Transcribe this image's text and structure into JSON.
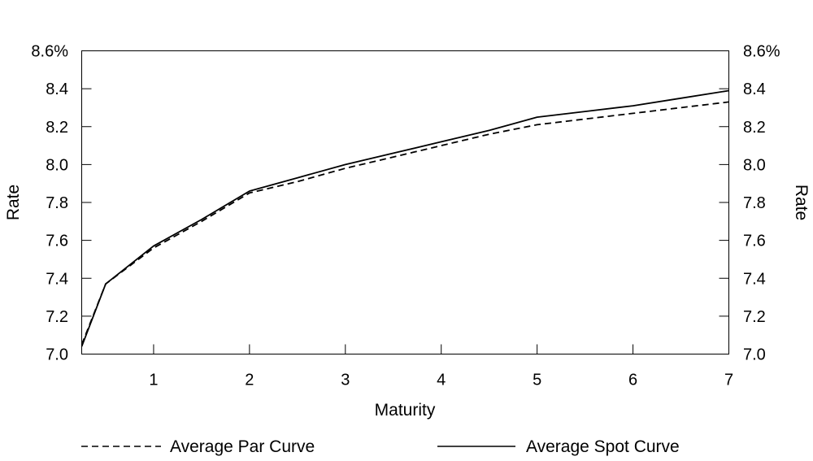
{
  "chart_data": {
    "type": "line",
    "xlabel": "Maturity",
    "ylabel_left": "Rate",
    "ylabel_right": "Rate",
    "xlim": [
      0.25,
      7
    ],
    "ylim": [
      7.0,
      8.6
    ],
    "x_ticks": [
      1,
      2,
      3,
      4,
      5,
      6,
      7
    ],
    "x_tick_labels": [
      "1",
      "2",
      "3",
      "4",
      "5",
      "6",
      "7"
    ],
    "y_ticks": [
      7.0,
      7.2,
      7.4,
      7.6,
      7.8,
      8.0,
      8.2,
      8.4,
      8.6
    ],
    "y_tick_labels": [
      "7.0",
      "7.2",
      "7.4",
      "7.6",
      "7.8",
      "8.0",
      "8.2",
      "8.4",
      "8.6%"
    ],
    "legend_position": "bottom",
    "series": [
      {
        "name": "Average Par Curve",
        "style": "dashed",
        "color": "#000000",
        "x": [
          0.25,
          0.5,
          1,
          1.5,
          2,
          2.5,
          3,
          3.5,
          4,
          4.5,
          5,
          5.5,
          6,
          6.5,
          7
        ],
        "y": [
          7.05,
          7.37,
          7.56,
          7.7,
          7.85,
          7.91,
          7.98,
          8.04,
          8.1,
          8.16,
          8.21,
          8.24,
          8.27,
          8.3,
          8.33
        ]
      },
      {
        "name": "Average Spot Curve",
        "style": "solid",
        "color": "#000000",
        "x": [
          0.25,
          0.5,
          1,
          1.5,
          2,
          2.5,
          3,
          3.5,
          4,
          4.5,
          5,
          5.5,
          6,
          6.5,
          7
        ],
        "y": [
          7.04,
          7.37,
          7.57,
          7.71,
          7.86,
          7.93,
          8.0,
          8.06,
          8.12,
          8.18,
          8.25,
          8.28,
          8.31,
          8.35,
          8.39
        ]
      }
    ]
  }
}
